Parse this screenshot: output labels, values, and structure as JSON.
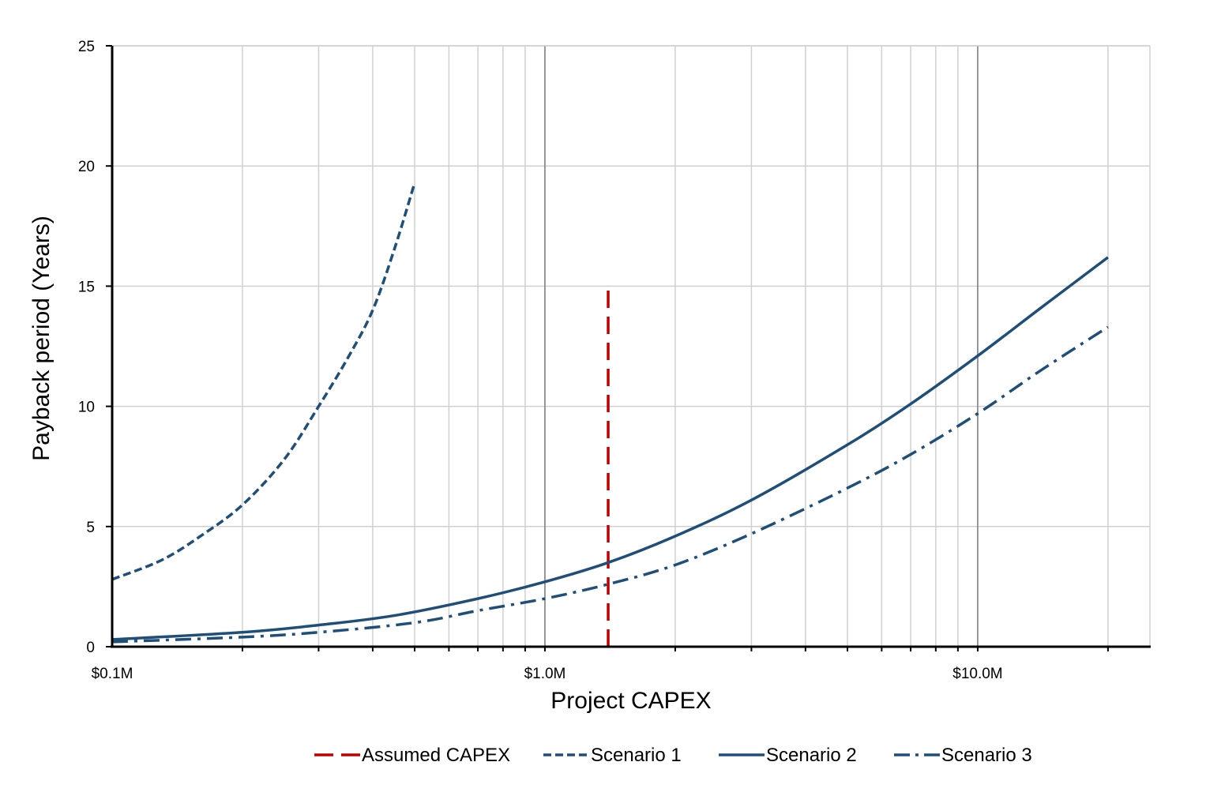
{
  "chart_data": {
    "type": "line",
    "title": "",
    "xlabel": "Project CAPEX",
    "ylabel": "Payback period (Years)",
    "x_scale": "log",
    "xlim": [
      0.1,
      25
    ],
    "ylim": [
      0,
      25
    ],
    "x_ticks": [
      {
        "value": 0.1,
        "label": "$0.1M"
      },
      {
        "value": 1.0,
        "label": "$1.0M"
      },
      {
        "value": 10.0,
        "label": "$10.0M"
      }
    ],
    "y_ticks": [
      {
        "value": 0,
        "label": "0"
      },
      {
        "value": 5,
        "label": "5"
      },
      {
        "value": 10,
        "label": "10"
      },
      {
        "value": 15,
        "label": "15"
      },
      {
        "value": 20,
        "label": "20"
      },
      {
        "value": 25,
        "label": "25"
      }
    ],
    "grid": true,
    "legend_position": "bottom",
    "series": [
      {
        "name": "Assumed CAPEX",
        "color": "#C00000",
        "style": "long-dash",
        "x": [
          1.4,
          1.4
        ],
        "y": [
          0,
          15
        ]
      },
      {
        "name": "Scenario 1",
        "color": "#1F4E79",
        "style": "dash",
        "x": [
          0.1,
          0.13,
          0.16,
          0.2,
          0.25,
          0.3,
          0.35,
          0.4,
          0.45,
          0.5
        ],
        "y": [
          2.8,
          3.6,
          4.6,
          5.9,
          7.8,
          10.0,
          12.0,
          14.0,
          16.6,
          19.3
        ]
      },
      {
        "name": "Scenario 2",
        "color": "#1F4E79",
        "style": "solid",
        "x": [
          0.1,
          0.2,
          0.3,
          0.45,
          0.7,
          1.0,
          1.4,
          2.0,
          3.0,
          5.0,
          7.0,
          10.0,
          14.0,
          20.0
        ],
        "y": [
          0.3,
          0.6,
          0.9,
          1.3,
          2.0,
          2.7,
          3.5,
          4.6,
          6.1,
          8.4,
          10.1,
          12.1,
          14.1,
          16.2
        ]
      },
      {
        "name": "Scenario 3",
        "color": "#1F4E79",
        "style": "dash-dot",
        "x": [
          0.1,
          0.2,
          0.3,
          0.5,
          0.7,
          1.0,
          1.4,
          2.0,
          3.0,
          5.0,
          7.0,
          10.0,
          14.0,
          20.0
        ],
        "y": [
          0.2,
          0.4,
          0.6,
          1.0,
          1.5,
          2.0,
          2.6,
          3.4,
          4.7,
          6.6,
          8.0,
          9.7,
          11.5,
          13.3
        ]
      }
    ]
  }
}
